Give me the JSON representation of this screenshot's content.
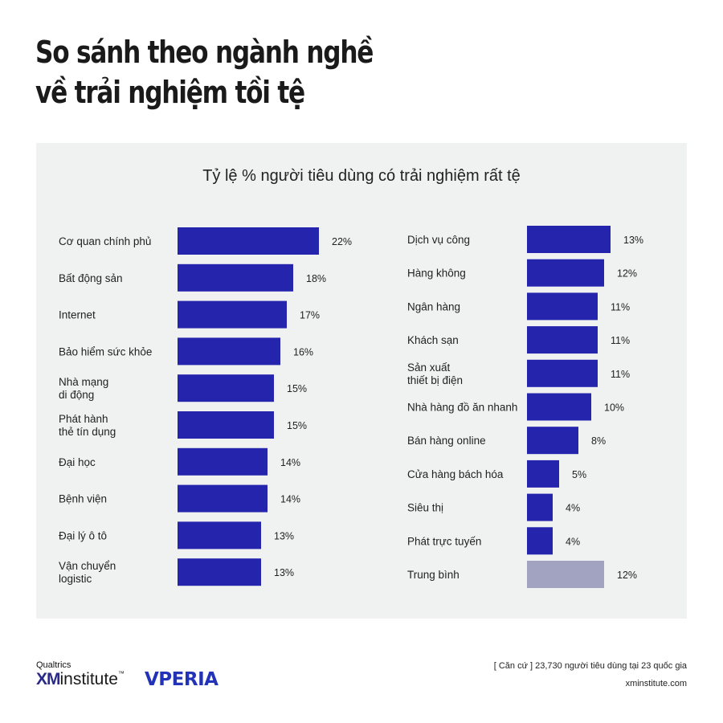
{
  "title_lines": [
    "So sánh theo ngành nghề",
    "về trải nghiệm tồi tệ"
  ],
  "footer": {
    "qualtrics": "Qualtrics",
    "xm_bold": "XM",
    "xm_rest": "institute",
    "xm_tm": "™",
    "partner": "VPERIA",
    "basis": "[ Căn cứ ] 23,730 người tiêu dùng tại 23 quốc gia",
    "url": "xminstitute.com"
  },
  "colors": {
    "bar": "#2424ad",
    "average": "#a1a3c1",
    "panel": "#f0f1f1"
  },
  "chart_data": {
    "type": "bar",
    "orientation": "horizontal",
    "title": "Tỷ lệ % người tiêu dùng có trải nghiệm rất tệ",
    "unit": "%",
    "xlim": [
      0,
      25
    ],
    "columns": [
      {
        "categories": [
          [
            "Cơ quan chính phủ"
          ],
          [
            "Bất động sản"
          ],
          [
            "Internet"
          ],
          [
            "Bảo hiểm sức khỏe"
          ],
          [
            "Nhà mạng",
            "di động"
          ],
          [
            "Phát hành",
            "thẻ tín dụng"
          ],
          [
            "Đại học"
          ],
          [
            "Bệnh viện"
          ],
          [
            "Đại lý ô tô"
          ],
          [
            "Vận chuyển",
            "logistic"
          ]
        ],
        "values": [
          22,
          18,
          17,
          16,
          15,
          15,
          14,
          14,
          13,
          13
        ],
        "labels": [
          "22%",
          "18%",
          "17%",
          "16%",
          "15%",
          "15%",
          "14%",
          "14%",
          "13%",
          "13%"
        ]
      },
      {
        "categories": [
          [
            "Dịch vụ công"
          ],
          [
            "Hàng không"
          ],
          [
            "Ngân hàng"
          ],
          [
            "Khách sạn"
          ],
          [
            "Sản xuất",
            "thiết bị điện"
          ],
          [
            "Nhà hàng đồ ăn nhanh"
          ],
          [
            "Bán hàng online"
          ],
          [
            "Cửa hàng bách hóa"
          ],
          [
            "Siêu thị"
          ],
          [
            "Phát trực tuyến"
          ],
          [
            "Trung bình"
          ]
        ],
        "values": [
          13,
          12,
          11,
          11,
          11,
          10,
          8,
          5,
          4,
          4,
          12
        ],
        "labels": [
          "13%",
          "12%",
          "11%",
          "11%",
          "11%",
          "10%",
          "8%",
          "5%",
          "4%",
          "4%",
          "12%"
        ],
        "highlight_last": true
      }
    ]
  }
}
